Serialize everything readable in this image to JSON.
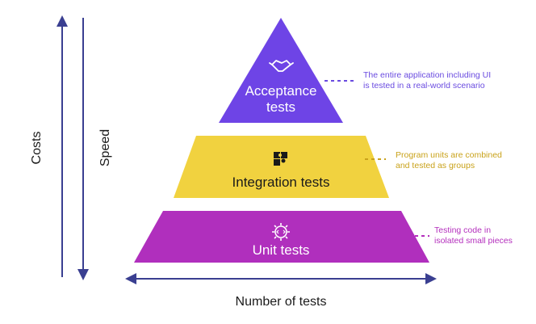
{
  "axes": {
    "costs_label": "Costs",
    "speed_label": "Speed",
    "x_label": "Number of tests"
  },
  "tiers": {
    "acceptance": {
      "line1": "Acceptance",
      "line2": "tests",
      "icon": "handshake-icon",
      "color": "#6e44e6",
      "note_line1": "The entire application including UI",
      "note_line2": "is tested in a real-world scenario",
      "note_color": "#6a4be0"
    },
    "integration": {
      "line1": "Integration tests",
      "icon": "puzzle-icon",
      "color": "#f1d23f",
      "note_line1": "Program units are combined",
      "note_line2": "and tested as groups",
      "note_color": "#c9a21a"
    },
    "unit": {
      "line1": "Unit tests",
      "icon": "code-gear-icon",
      "color": "#b02fbd",
      "note_line1": "Testing code in",
      "note_line2": "isolated small pieces",
      "note_color": "#b42fbd"
    }
  },
  "arrow_color": "#3a3f91"
}
